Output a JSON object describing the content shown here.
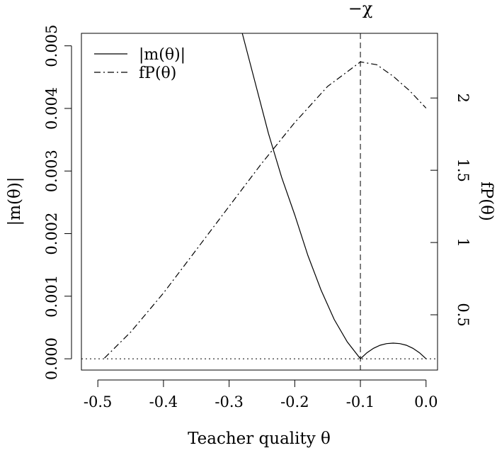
{
  "chart_data": {
    "type": "line",
    "title": "",
    "xlabel": "Teacher quality θ",
    "ylabel_left": "|m(θ)|",
    "ylabel_right": "fP(θ)",
    "xlim": [
      -0.525,
      0.0175
    ],
    "ylim_left": [
      -0.00018,
      0.0052
    ],
    "ylim_right": [
      0.1175,
      2.4475
    ],
    "x_ticks": [
      {
        "value": -0.5,
        "label": "-0.5"
      },
      {
        "value": -0.4,
        "label": "-0.4"
      },
      {
        "value": -0.3,
        "label": "-0.3"
      },
      {
        "value": -0.2,
        "label": "-0.2"
      },
      {
        "value": -0.1,
        "label": "-0.1"
      },
      {
        "value": 0.0,
        "label": "0.0"
      }
    ],
    "y_ticks_left": [
      {
        "value": 0.0,
        "label": "0.000"
      },
      {
        "value": 0.001,
        "label": "0.001"
      },
      {
        "value": 0.002,
        "label": "0.002"
      },
      {
        "value": 0.003,
        "label": "0.003"
      },
      {
        "value": 0.004,
        "label": "0.004"
      },
      {
        "value": 0.005,
        "label": "0.005"
      }
    ],
    "y_ticks_right": [
      {
        "value": 0.5,
        "label": "0.5"
      },
      {
        "value": 1.0,
        "label": "1"
      },
      {
        "value": 1.5,
        "label": "1.5"
      },
      {
        "value": 2.0,
        "label": "2"
      }
    ],
    "series": [
      {
        "name": "|m(θ)|",
        "axis": "left",
        "style": "solid",
        "x": [
          -0.28,
          -0.26,
          -0.24,
          -0.22,
          -0.2,
          -0.18,
          -0.16,
          -0.14,
          -0.12,
          -0.1,
          -0.09,
          -0.08,
          -0.07,
          -0.06,
          -0.05,
          -0.04,
          -0.03,
          -0.02,
          -0.01,
          0.0
        ],
        "y": [
          0.0052,
          0.0044,
          0.0036,
          0.0029,
          0.0023,
          0.00165,
          0.0011,
          0.00063,
          0.00027,
          0.0,
          9.6e-05,
          0.000168,
          0.000216,
          0.000242,
          0.00025,
          0.000242,
          0.000216,
          0.000168,
          9.6e-05,
          0.0
        ]
      },
      {
        "name": "fP(θ)",
        "axis": "right",
        "style": "dotdash",
        "x": [
          -0.49,
          -0.45,
          -0.4,
          -0.35,
          -0.3,
          -0.25,
          -0.2,
          -0.15,
          -0.1,
          -0.075,
          -0.05,
          -0.025,
          0.0
        ],
        "y": [
          0.2,
          0.38,
          0.65,
          0.95,
          1.25,
          1.55,
          1.83,
          2.08,
          2.25,
          2.23,
          2.15,
          2.05,
          1.93
        ]
      }
    ],
    "reference_lines": [
      {
        "orientation": "vertical",
        "value": -0.1,
        "style": "dashed",
        "label": "−χ"
      },
      {
        "orientation": "horizontal",
        "axis": "left",
        "value": 0.0,
        "style": "dotted"
      }
    ],
    "legend": {
      "position": "top-left",
      "entries": [
        {
          "label": "|m(θ)|",
          "style": "solid"
        },
        {
          "label": "fP(θ)",
          "style": "dotdash"
        }
      ]
    },
    "grid": false
  }
}
